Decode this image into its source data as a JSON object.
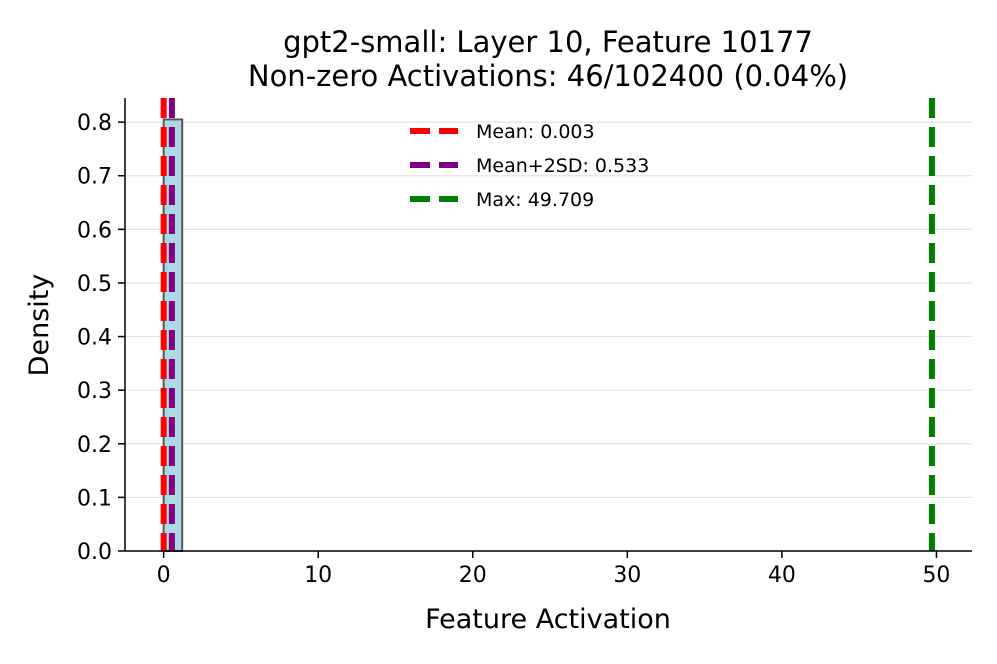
{
  "chart_data": {
    "type": "bar",
    "title": "gpt2-small: Layer 10, Feature 10177",
    "subtitle": "Non-zero Activations: 46/102400 (0.04%)",
    "xlabel": "Feature Activation",
    "ylabel": "Density",
    "xlim": [
      -2.5,
      52.3
    ],
    "ylim": [
      0,
      0.845
    ],
    "xticks": [
      0,
      10,
      20,
      30,
      40,
      50
    ],
    "xtick_labels": [
      "0",
      "10",
      "20",
      "30",
      "40",
      "50"
    ],
    "yticks": [
      0.0,
      0.1,
      0.2,
      0.3,
      0.4,
      0.5,
      0.6,
      0.7,
      0.8
    ],
    "ytick_labels": [
      "0.0",
      "0.1",
      "0.2",
      "0.3",
      "0.4",
      "0.5",
      "0.6",
      "0.7",
      "0.8"
    ],
    "grid": "y",
    "bins": [
      {
        "x0": 0.0,
        "x1": 1.2,
        "density": 0.805
      }
    ],
    "bar_color": "#add8e6",
    "bar_edge_color": "#555555",
    "vlines": [
      {
        "label": "Mean: 0.003",
        "x": 0.003,
        "color": "#ff0000"
      },
      {
        "label": "Mean+2SD: 0.533",
        "x": 0.533,
        "color": "#800080"
      },
      {
        "label": "Max: 49.709",
        "x": 49.709,
        "color": "#008000"
      }
    ],
    "legend_position": "top-center"
  }
}
